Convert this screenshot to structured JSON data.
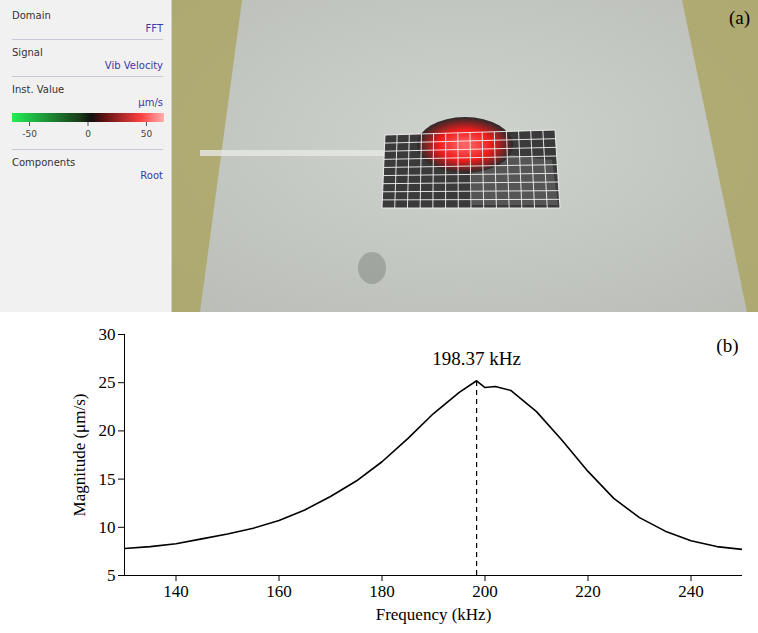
{
  "screenshot": {
    "label": "(a)",
    "sidebar": [
      {
        "heading": "Domain",
        "value": "FFT"
      },
      {
        "heading": "Signal",
        "value": "Vib Velocity"
      },
      {
        "heading": "Inst. Value",
        "value": "µm/s",
        "colorbar": {
          "range": [
            -65,
            65
          ],
          "ticks": [
            -50,
            0,
            50
          ]
        }
      },
      {
        "heading": "Components",
        "value": "Root"
      }
    ]
  },
  "chart_data": {
    "type": "line",
    "label": "(b)",
    "xlabel": "Frequency (kHz)",
    "ylabel": "Magnitude (μm/s)",
    "x": [
      130,
      135,
      140,
      145,
      150,
      155,
      160,
      165,
      170,
      175,
      180,
      185,
      190,
      195,
      198.37,
      200,
      202,
      205,
      210,
      215,
      220,
      225,
      230,
      235,
      240,
      245,
      250
    ],
    "values": [
      7.8,
      8.0,
      8.3,
      8.8,
      9.3,
      9.9,
      10.7,
      11.8,
      13.2,
      14.8,
      16.8,
      19.2,
      21.8,
      24.0,
      25.2,
      24.5,
      24.6,
      24.2,
      22.0,
      19.0,
      15.8,
      13.0,
      11.0,
      9.6,
      8.6,
      8.0,
      7.7
    ],
    "color": "#000000",
    "xlim": [
      130,
      250
    ],
    "xticks": [
      140,
      160,
      180,
      200,
      220,
      240
    ],
    "ylim": [
      5,
      30
    ],
    "yticks": [
      5,
      10,
      15,
      20,
      25,
      30
    ],
    "grid": false,
    "annotation": {
      "text": "198.37 kHz",
      "x": 198.37
    }
  }
}
